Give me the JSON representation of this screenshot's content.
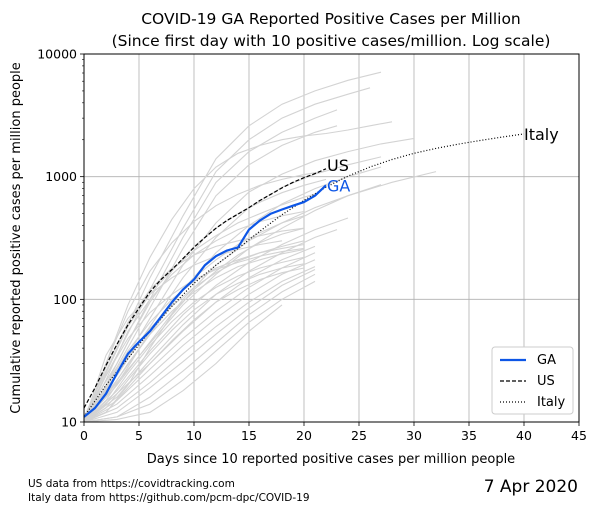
{
  "chart_data": {
    "type": "line",
    "title": "COVID-19 GA Reported Positive Cases per Million",
    "subtitle": "(Since first day with 10 positive cases/million. Log scale)",
    "xlabel": "Days since 10 reported positive cases per million people",
    "ylabel": "Cumulative reported positive cases per million people",
    "xlim": [
      0,
      45
    ],
    "ylim": [
      10,
      10000
    ],
    "yscale": "log",
    "xticks": [
      "0",
      "5",
      "10",
      "15",
      "20",
      "25",
      "30",
      "35",
      "40",
      "45"
    ],
    "yticks": [
      "10",
      "100",
      "1000",
      "10000"
    ],
    "grid": true,
    "legend_position": "lower-right",
    "legend": [
      "GA",
      "US",
      "Italy"
    ],
    "colors": {
      "GA": "#0d56e6",
      "US": "#000000",
      "Italy": "#000000",
      "background_lines": "#d3d3d3",
      "ga_label": "#0d56e6"
    },
    "series": [
      {
        "name": "GA",
        "style": "solid",
        "x": [
          0,
          1,
          2,
          3,
          4,
          5,
          6,
          7,
          8,
          9,
          10,
          11,
          12,
          13,
          14,
          15,
          16,
          17,
          18,
          19,
          20,
          21,
          22
        ],
        "y": [
          11,
          13,
          17,
          25,
          36,
          45,
          55,
          72,
          95,
          120,
          145,
          190,
          225,
          250,
          265,
          370,
          440,
          500,
          540,
          580,
          620,
          700,
          850
        ]
      },
      {
        "name": "US",
        "style": "dashed",
        "x": [
          0,
          1,
          2,
          3,
          4,
          5,
          6,
          7,
          8,
          9,
          10,
          11,
          12,
          13,
          14,
          15,
          16,
          17,
          18,
          19,
          20,
          21,
          22
        ],
        "y": [
          13,
          19,
          29,
          43,
          62,
          85,
          115,
          145,
          175,
          215,
          265,
          320,
          380,
          440,
          495,
          560,
          640,
          720,
          810,
          900,
          980,
          1060,
          1160
        ]
      },
      {
        "name": "Italy",
        "style": "dotted",
        "x": [
          0,
          2,
          4,
          6,
          8,
          10,
          12,
          14,
          16,
          18,
          20,
          22,
          24,
          26,
          28,
          30,
          32,
          34,
          36,
          38,
          40
        ],
        "y": [
          11,
          20,
          33,
          55,
          88,
          135,
          190,
          260,
          360,
          490,
          640,
          820,
          1010,
          1200,
          1380,
          1550,
          1700,
          1840,
          1970,
          2100,
          2230
        ]
      }
    ],
    "series_labels": [
      "Italy",
      "US",
      "GA"
    ],
    "background_series": [
      {
        "x": [
          0,
          3,
          6,
          9,
          12,
          15,
          18,
          21,
          24,
          27
        ],
        "y": [
          11,
          40,
          150,
          480,
          1400,
          2600,
          3900,
          5000,
          6100,
          7100
        ]
      },
      {
        "x": [
          0,
          3,
          6,
          9,
          12,
          15,
          18,
          21,
          24,
          26
        ],
        "y": [
          11,
          35,
          120,
          380,
          1100,
          2000,
          3000,
          3900,
          4700,
          5300
        ]
      },
      {
        "x": [
          0,
          3,
          6,
          9,
          12,
          15,
          18,
          21,
          23
        ],
        "y": [
          11,
          30,
          100,
          320,
          900,
          1600,
          2300,
          3000,
          3500
        ]
      },
      {
        "x": [
          0,
          3,
          6,
          9,
          12,
          15,
          18,
          21,
          23
        ],
        "y": [
          10,
          28,
          85,
          260,
          700,
          1250,
          1800,
          2300,
          2600
        ]
      },
      {
        "x": [
          0,
          3,
          6,
          9,
          12,
          15,
          18,
          21,
          24,
          27,
          30
        ],
        "y": [
          10,
          25,
          70,
          190,
          420,
          750,
          1050,
          1350,
          1600,
          1850,
          2050
        ]
      },
      {
        "x": [
          0,
          3,
          6,
          9,
          12,
          15,
          18,
          21,
          24,
          27
        ],
        "y": [
          10,
          24,
          60,
          150,
          320,
          560,
          820,
          1050,
          1250,
          1450
        ]
      },
      {
        "x": [
          0,
          3,
          6,
          9,
          12,
          15,
          18,
          21,
          24,
          27
        ],
        "y": [
          10,
          22,
          52,
          120,
          240,
          400,
          600,
          800,
          1000,
          1200
        ]
      },
      {
        "x": [
          0,
          3,
          6,
          9,
          12,
          15,
          18,
          21,
          24,
          28,
          32
        ],
        "y": [
          10,
          20,
          45,
          100,
          190,
          300,
          420,
          560,
          700,
          900,
          1100
        ]
      },
      {
        "x": [
          0,
          3,
          6,
          9,
          12,
          15,
          18,
          21,
          24,
          27
        ],
        "y": [
          10,
          21,
          44,
          90,
          160,
          260,
          380,
          530,
          700,
          860
        ]
      },
      {
        "x": [
          0,
          2,
          4,
          6,
          8,
          10,
          12,
          14,
          16,
          18,
          20,
          22
        ],
        "y": [
          10,
          30,
          80,
          170,
          290,
          430,
          580,
          720,
          850,
          950,
          1040,
          1110
        ]
      },
      {
        "x": [
          0,
          3,
          6,
          9,
          12,
          15,
          18,
          21,
          24
        ],
        "y": [
          10,
          18,
          38,
          75,
          130,
          200,
          280,
          370,
          460
        ]
      },
      {
        "x": [
          0,
          3,
          6,
          9,
          12,
          15,
          18,
          21,
          23
        ],
        "y": [
          10,
          16,
          32,
          62,
          110,
          170,
          240,
          320,
          370
        ]
      },
      {
        "x": [
          0,
          3,
          6,
          9,
          12,
          15,
          18,
          21
        ],
        "y": [
          10,
          17,
          30,
          55,
          95,
          150,
          210,
          270
        ]
      },
      {
        "x": [
          0,
          3,
          6,
          9,
          12,
          15,
          18,
          21
        ],
        "y": [
          10,
          15,
          27,
          48,
          80,
          125,
          180,
          240
        ]
      },
      {
        "x": [
          0,
          3,
          6,
          9,
          12,
          15,
          18,
          21
        ],
        "y": [
          10,
          14,
          24,
          42,
          70,
          110,
          160,
          210
        ]
      },
      {
        "x": [
          0,
          3,
          6,
          9,
          12,
          15,
          18,
          21
        ],
        "y": [
          10,
          13,
          21,
          36,
          60,
          95,
          140,
          185
        ]
      },
      {
        "x": [
          0,
          3,
          6,
          9,
          12,
          15,
          18,
          21
        ],
        "y": [
          10,
          12,
          19,
          31,
          52,
          85,
          130,
          175
        ]
      },
      {
        "x": [
          0,
          3,
          6,
          9,
          12,
          15,
          18,
          21
        ],
        "y": [
          10,
          11,
          16,
          26,
          44,
          75,
          115,
          160
        ]
      },
      {
        "x": [
          0,
          3,
          6,
          9,
          12,
          15,
          18,
          21
        ],
        "y": [
          10,
          11,
          14,
          22,
          38,
          65,
          100,
          140
        ]
      },
      {
        "x": [
          0,
          3,
          6,
          9,
          12,
          15,
          18
        ],
        "y": [
          10,
          10.5,
          12,
          18,
          30,
          55,
          90
        ]
      },
      {
        "x": [
          0,
          2,
          4,
          6,
          8,
          10,
          12,
          14,
          16,
          18,
          20,
          21
        ],
        "y": [
          10,
          25,
          60,
          110,
          175,
          250,
          330,
          420,
          500,
          590,
          680,
          720
        ]
      },
      {
        "x": [
          0,
          2,
          4,
          6,
          8,
          10,
          12,
          14,
          16,
          18,
          20
        ],
        "y": [
          10,
          22,
          55,
          100,
          160,
          230,
          300,
          370,
          430,
          480,
          520
        ]
      },
      {
        "x": [
          0,
          2,
          4,
          6,
          8,
          10,
          12,
          14,
          16,
          18,
          20
        ],
        "y": [
          10,
          28,
          65,
          120,
          180,
          230,
          270,
          300,
          330,
          360,
          380
        ]
      },
      {
        "x": [
          0,
          2,
          4,
          6,
          8,
          10,
          12,
          14,
          16,
          18,
          20
        ],
        "y": [
          10,
          19,
          38,
          65,
          100,
          140,
          180,
          210,
          240,
          260,
          280
        ]
      },
      {
        "x": [
          0,
          2,
          4,
          6,
          8,
          10,
          12,
          14,
          16,
          18,
          20
        ],
        "y": [
          10,
          16,
          30,
          52,
          80,
          115,
          150,
          185,
          210,
          235,
          255
        ]
      },
      {
        "x": [
          0,
          2,
          4,
          6,
          8,
          10,
          12,
          14,
          16,
          18,
          20
        ],
        "y": [
          10,
          14,
          25,
          42,
          66,
          95,
          125,
          155,
          180,
          200,
          220
        ]
      },
      {
        "x": [
          0,
          2,
          4,
          6,
          8,
          10,
          12,
          14,
          16,
          18,
          20
        ],
        "y": [
          10,
          13,
          22,
          36,
          56,
          82,
          110,
          135,
          160,
          180,
          195
        ]
      },
      {
        "x": [
          0,
          2,
          4,
          6,
          8,
          10,
          12,
          14,
          16,
          18,
          20
        ],
        "y": [
          10,
          12,
          19,
          30,
          46,
          68,
          95,
          120,
          145,
          165,
          180
        ]
      },
      {
        "x": [
          0,
          2,
          4,
          6,
          8,
          10,
          12,
          14,
          16,
          18,
          20
        ],
        "y": [
          10,
          24,
          48,
          78,
          110,
          145,
          175,
          200,
          225,
          245,
          260
        ]
      },
      {
        "x": [
          0,
          2,
          4,
          6,
          8,
          10,
          12,
          14,
          16,
          18,
          20
        ],
        "y": [
          10,
          18,
          34,
          58,
          88,
          125,
          165,
          205,
          240,
          270,
          300
        ]
      },
      {
        "x": [
          0,
          2,
          4,
          6,
          8,
          10,
          12,
          14,
          16,
          18
        ],
        "y": [
          10,
          35,
          70,
          110,
          150,
          190,
          225,
          255,
          280,
          300
        ]
      },
      {
        "x": [
          0,
          2,
          4,
          6,
          8,
          10,
          12,
          14,
          16,
          18,
          20
        ],
        "y": [
          10,
          12,
          20,
          40,
          75,
          120,
          170,
          230,
          290,
          340,
          380
        ]
      },
      {
        "x": [
          0,
          2,
          4,
          6,
          8,
          10,
          12,
          14,
          16,
          18,
          20
        ],
        "y": [
          10,
          15,
          28,
          55,
          95,
          150,
          210,
          280,
          350,
          420,
          480
        ]
      },
      {
        "x": [
          0,
          2,
          4,
          6,
          8,
          10,
          12,
          14,
          16,
          18,
          20,
          22
        ],
        "y": [
          10,
          20,
          45,
          95,
          170,
          270,
          380,
          500,
          620,
          740,
          850,
          950
        ]
      },
      {
        "x": [
          0,
          2,
          4,
          6,
          8,
          10,
          12,
          14,
          16,
          18,
          20,
          22,
          24,
          26,
          28
        ],
        "y": [
          10,
          30,
          90,
          220,
          450,
          800,
          1200,
          1550,
          1800,
          2000,
          2150,
          2250,
          2400,
          2600,
          2800
        ]
      }
    ]
  },
  "footer": {
    "source_us": "US data from https://covidtracking.com",
    "source_italy": "Italy data from https://github.com/pcm-dpc/COVID-19",
    "date": "7 Apr 2020"
  }
}
